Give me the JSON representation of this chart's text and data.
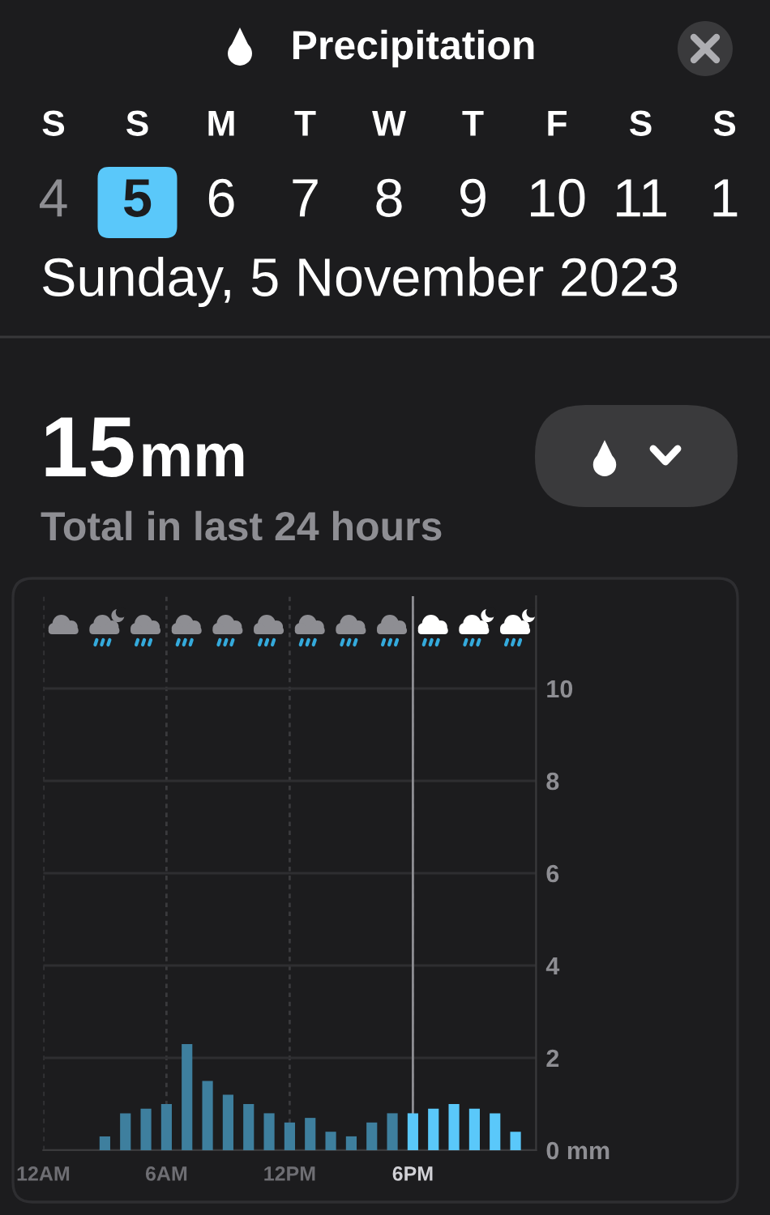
{
  "chart_data": {
    "type": "bar",
    "title": "Precipitation",
    "subtitle": "Sunday, 5 November 2023",
    "annotations": [
      "S",
      "S",
      "M",
      "T",
      "W",
      "T",
      "F",
      "S",
      "S",
      "4",
      "5",
      "6",
      "7",
      "8",
      "9",
      "10",
      "11",
      "1",
      "15",
      "mm",
      "Total in last 24 hours"
    ],
    "x": [
      "2023-11-05T03:00",
      "2023-11-05T04:00",
      "2023-11-05T05:00",
      "2023-11-05T06:00",
      "2023-11-05T07:00",
      "2023-11-05T08:00",
      "2023-11-05T09:00",
      "2023-11-05T10:00",
      "2023-11-05T11:00",
      "2023-11-05T12:00",
      "2023-11-05T13:00",
      "2023-11-05T14:00",
      "2023-11-05T15:00",
      "2023-11-05T16:00",
      "2023-11-05T17:00",
      "2023-11-05T18:00",
      "2023-11-05T19:00",
      "2023-11-05T20:00",
      "2023-11-05T21:00",
      "2023-11-05T22:00",
      "2023-11-05T23:00"
    ],
    "values": [
      0.3,
      0.8,
      0.9,
      1.0,
      2.3,
      1.5,
      1.2,
      1.0,
      0.8,
      0.6,
      0.7,
      0.4,
      0.3,
      0.6,
      0.8,
      0.8,
      0.9,
      1.0,
      0.9,
      0.8,
      0.4
    ],
    "colors": [
      "#3e7f9e",
      "#3e7f9e",
      "#3e7f9e",
      "#3e7f9e",
      "#3e7f9e",
      "#3e7f9e",
      "#3e7f9e",
      "#3e7f9e",
      "#3e7f9e",
      "#3e7f9e",
      "#3e7f9e",
      "#3e7f9e",
      "#3e7f9e",
      "#3e7f9e",
      "#3e7f9e",
      "#5ac8fa",
      "#5ac8fa",
      "#5ac8fa",
      "#5ac8fa",
      "#5ac8fa",
      "#5ac8fa"
    ],
    "xlim": [
      "2023-11-05T00:00",
      "2023-11-06T00:00"
    ],
    "xticks": [
      {
        "value": "2023-11-05T00:00",
        "label": "12AM"
      },
      {
        "value": "2023-11-05T06:00",
        "label": "6AM"
      },
      {
        "value": "2023-11-05T12:00",
        "label": "12PM"
      },
      {
        "value": "2023-11-05T18:00",
        "label": "6PM"
      }
    ],
    "ylim": [
      0,
      12
    ],
    "yticks": [
      {
        "value": 0,
        "label": "0 mm"
      },
      2,
      4,
      6,
      8,
      10
    ],
    "grid": true,
    "ref_lines": [
      {
        "axis": "x",
        "value": "2023-11-05T18:00",
        "color": "#8e8e93"
      }
    ]
  }
}
